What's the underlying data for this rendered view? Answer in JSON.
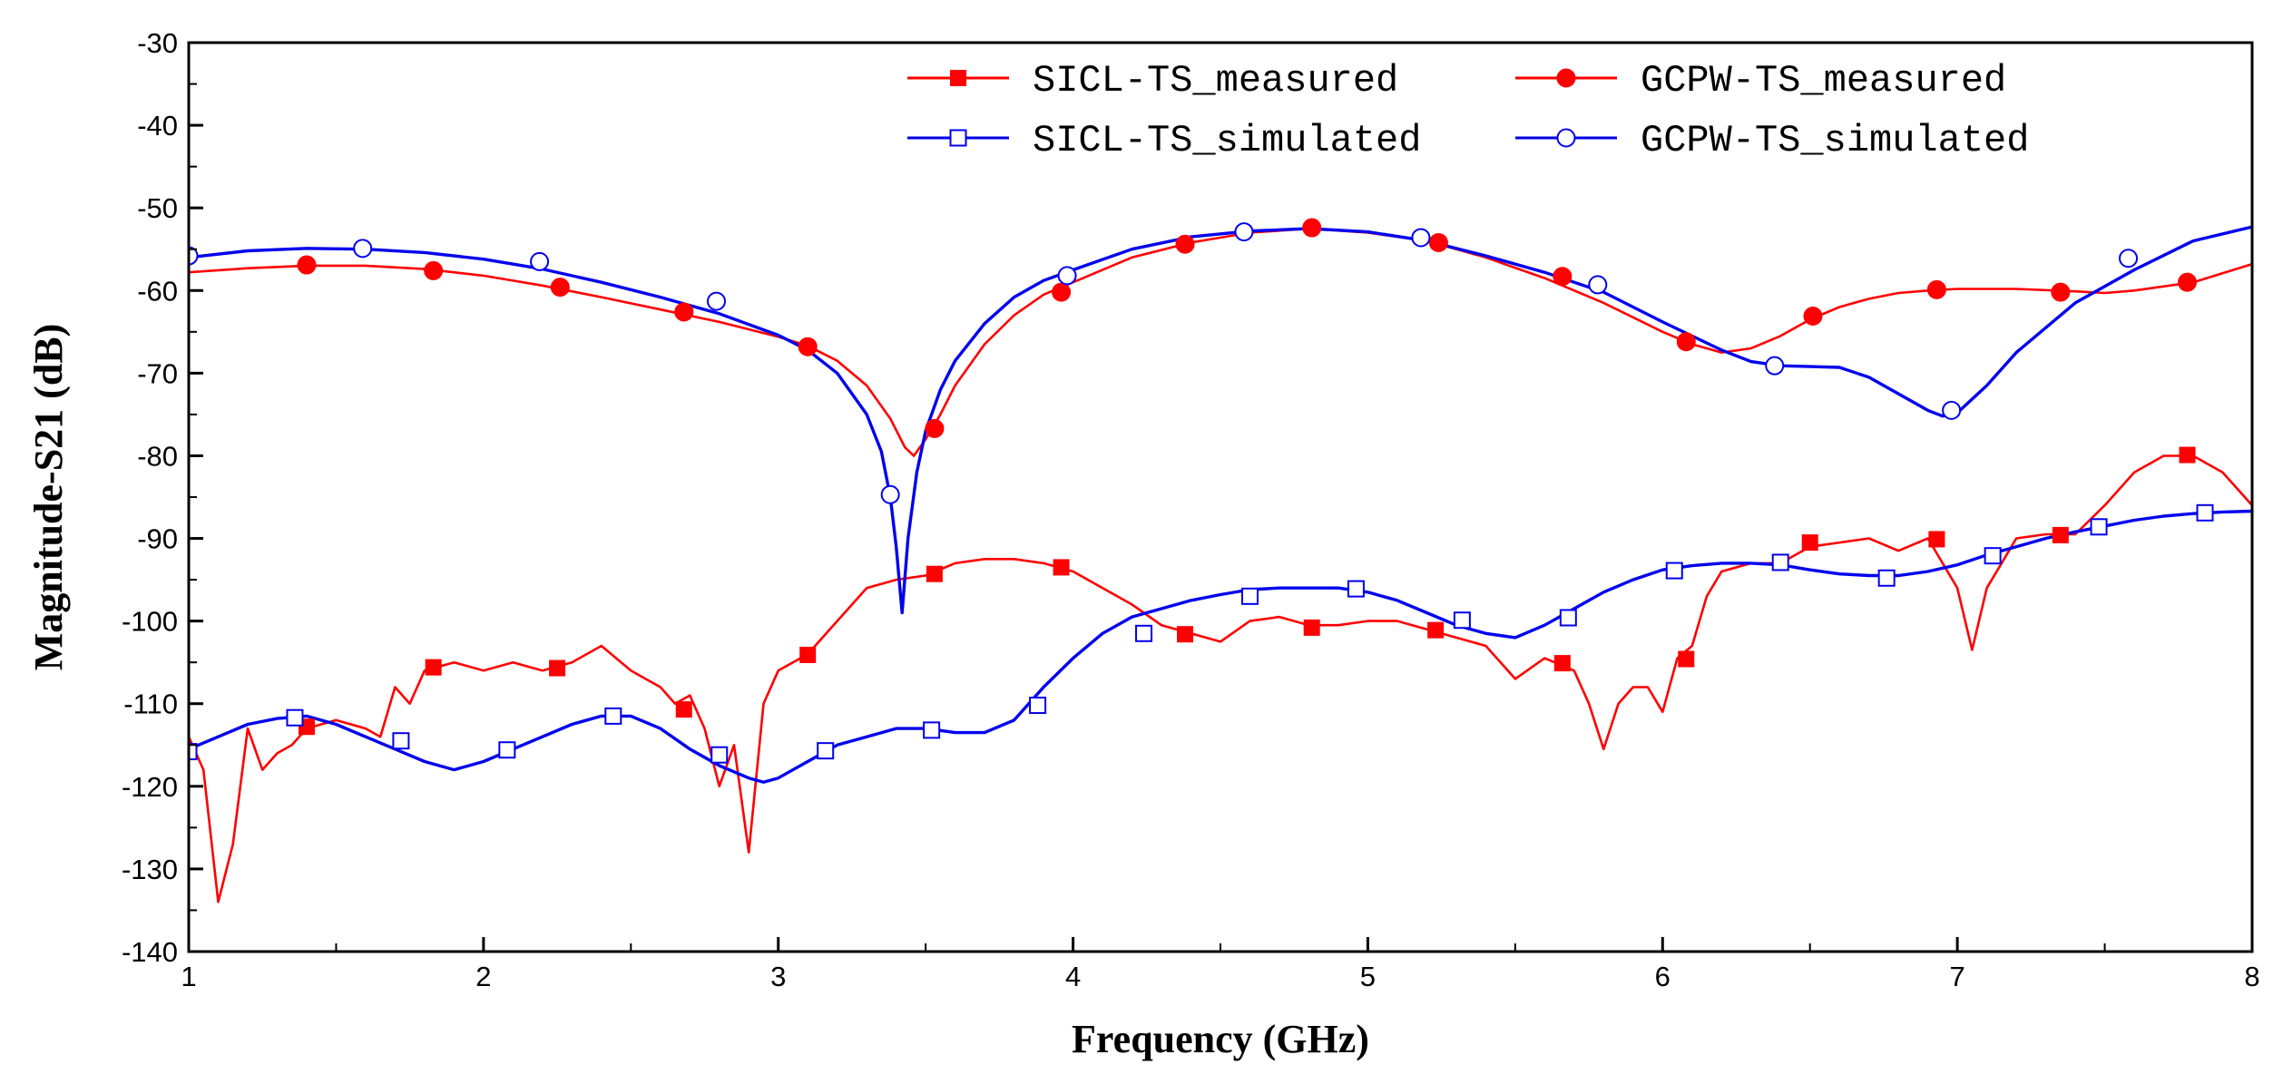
{
  "chart_data": {
    "type": "line",
    "xlabel": "Frequency (GHz)",
    "ylabel": "Magnitude-S21 (dB)",
    "xlim": [
      1,
      8
    ],
    "ylim": [
      -140,
      -30
    ],
    "xticks": [
      1,
      2,
      3,
      4,
      5,
      6,
      7,
      8
    ],
    "yticks": [
      -140,
      -130,
      -120,
      -110,
      -100,
      -90,
      -80,
      -70,
      -60,
      -50,
      -40,
      -30
    ],
    "grid": false,
    "legend_position": "top-right",
    "series": [
      {
        "name": "SICL-TS_measured",
        "color": "#ff0000",
        "marker": "filled-square",
        "x": [
          1.0,
          1.05,
          1.1,
          1.15,
          1.2,
          1.25,
          1.3,
          1.35,
          1.4,
          1.5,
          1.6,
          1.65,
          1.7,
          1.75,
          1.8,
          1.9,
          2.0,
          2.1,
          2.2,
          2.3,
          2.4,
          2.5,
          2.6,
          2.65,
          2.7,
          2.75,
          2.8,
          2.85,
          2.9,
          2.95,
          3.0,
          3.1,
          3.2,
          3.3,
          3.4,
          3.5,
          3.6,
          3.7,
          3.8,
          3.9,
          4.0,
          4.1,
          4.2,
          4.3,
          4.4,
          4.5,
          4.6,
          4.7,
          4.8,
          4.9,
          5.0,
          5.1,
          5.2,
          5.3,
          5.4,
          5.5,
          5.6,
          5.7,
          5.75,
          5.8,
          5.85,
          5.9,
          5.95,
          6.0,
          6.05,
          6.1,
          6.15,
          6.2,
          6.3,
          6.4,
          6.5,
          6.6,
          6.7,
          6.8,
          6.9,
          7.0,
          7.05,
          7.1,
          7.15,
          7.2,
          7.3,
          7.4,
          7.5,
          7.6,
          7.7,
          7.8,
          7.9,
          8.0
        ],
        "values": [
          -114,
          -118,
          -134,
          -127,
          -113,
          -118,
          -116,
          -115,
          -113,
          -112,
          -113,
          -114,
          -108,
          -110,
          -106,
          -105,
          -106,
          -105,
          -106,
          -105,
          -103,
          -106,
          -108,
          -110,
          -109,
          -113,
          -120,
          -115,
          -128,
          -110,
          -106,
          -104,
          -100,
          -96,
          -95,
          -94.5,
          -93,
          -92.5,
          -92.5,
          -93,
          -94,
          -96,
          -98,
          -100.5,
          -101.5,
          -102.5,
          -100,
          -99.5,
          -100.5,
          -100.5,
          -100,
          -100,
          -101,
          -102,
          -103,
          -107,
          -104.5,
          -106,
          -110,
          -115.5,
          -110,
          -108,
          -108,
          -111,
          -104.5,
          -103,
          -97,
          -94,
          -93,
          -93,
          -91,
          -90.5,
          -90,
          -91.5,
          -90,
          -96,
          -103.5,
          -96,
          -93,
          -90,
          -89.5,
          -89.5,
          -86,
          -82,
          -80,
          -80,
          -82,
          -86
        ]
      },
      {
        "name": "SICL-TS_simulated",
        "color": "#0000ee",
        "marker": "hollow-square",
        "x": [
          1.0,
          1.1,
          1.2,
          1.3,
          1.4,
          1.5,
          1.6,
          1.7,
          1.8,
          1.9,
          2.0,
          2.1,
          2.2,
          2.3,
          2.4,
          2.5,
          2.6,
          2.7,
          2.8,
          2.9,
          2.95,
          3.0,
          3.1,
          3.2,
          3.3,
          3.4,
          3.5,
          3.6,
          3.7,
          3.8,
          3.9,
          4.0,
          4.1,
          4.2,
          4.3,
          4.4,
          4.5,
          4.6,
          4.7,
          4.8,
          4.9,
          5.0,
          5.1,
          5.2,
          5.3,
          5.4,
          5.5,
          5.6,
          5.7,
          5.8,
          5.9,
          6.0,
          6.1,
          6.2,
          6.3,
          6.4,
          6.5,
          6.6,
          6.7,
          6.8,
          6.9,
          7.0,
          7.1,
          7.2,
          7.3,
          7.4,
          7.5,
          7.6,
          7.7,
          7.8,
          7.9,
          8.0
        ],
        "values": [
          -115.5,
          -114,
          -112.5,
          -111.8,
          -111.5,
          -112.5,
          -114,
          -115.5,
          -117,
          -118,
          -117,
          -115.5,
          -114,
          -112.5,
          -111.5,
          -111.5,
          -113,
          -115.5,
          -117.5,
          -119,
          -119.5,
          -119,
          -117,
          -115,
          -114,
          -113,
          -113,
          -113.5,
          -113.5,
          -112,
          -108,
          -104.5,
          -101.5,
          -99.5,
          -98.5,
          -97.5,
          -96.8,
          -96.2,
          -96,
          -96,
          -96,
          -96.5,
          -97.5,
          -99,
          -100.5,
          -101.5,
          -102,
          -100.5,
          -98.5,
          -96.5,
          -95,
          -93.8,
          -93.3,
          -93,
          -93,
          -93.2,
          -93.8,
          -94.3,
          -94.5,
          -94.5,
          -94,
          -93.2,
          -92,
          -91,
          -90,
          -89.2,
          -88.5,
          -87.8,
          -87.3,
          -87,
          -86.8,
          -86.7
        ]
      },
      {
        "name": "GCPW-TS_measured",
        "color": "#ff0000",
        "marker": "filled-circle",
        "x": [
          1.0,
          1.2,
          1.4,
          1.6,
          1.8,
          2.0,
          2.2,
          2.4,
          2.6,
          2.8,
          3.0,
          3.1,
          3.2,
          3.3,
          3.38,
          3.43,
          3.46,
          3.5,
          3.55,
          3.6,
          3.7,
          3.8,
          3.9,
          4.0,
          4.2,
          4.4,
          4.6,
          4.8,
          5.0,
          5.2,
          5.4,
          5.6,
          5.8,
          6.0,
          6.1,
          6.2,
          6.3,
          6.4,
          6.5,
          6.6,
          6.7,
          6.8,
          6.9,
          7.0,
          7.2,
          7.4,
          7.5,
          7.6,
          7.8,
          8.0
        ],
        "values": [
          -57.8,
          -57.3,
          -57,
          -57,
          -57.4,
          -58.2,
          -59.4,
          -60.8,
          -62.3,
          -63.8,
          -65.6,
          -66.7,
          -68.5,
          -71.5,
          -75.5,
          -79,
          -80,
          -78,
          -75,
          -71.5,
          -66.5,
          -63,
          -60.5,
          -59,
          -56,
          -54.2,
          -53,
          -52.5,
          -53,
          -54,
          -56,
          -58.5,
          -61.5,
          -65,
          -66.5,
          -67.5,
          -67,
          -65.5,
          -63.5,
          -62,
          -61,
          -60.3,
          -60,
          -59.8,
          -59.8,
          -60.1,
          -60.3,
          -60,
          -59,
          -56.8
        ]
      },
      {
        "name": "GCPW-TS_simulated",
        "color": "#0000ee",
        "marker": "hollow-circle",
        "x": [
          1.0,
          1.2,
          1.4,
          1.6,
          1.8,
          2.0,
          2.2,
          2.4,
          2.6,
          2.8,
          3.0,
          3.1,
          3.2,
          3.3,
          3.35,
          3.38,
          3.4,
          3.42,
          3.44,
          3.47,
          3.5,
          3.55,
          3.6,
          3.7,
          3.8,
          3.9,
          4.0,
          4.2,
          4.4,
          4.6,
          4.8,
          5.0,
          5.2,
          5.4,
          5.6,
          5.8,
          6.0,
          6.2,
          6.3,
          6.4,
          6.5,
          6.6,
          6.7,
          6.8,
          6.9,
          6.95,
          7.0,
          7.1,
          7.2,
          7.4,
          7.6,
          7.8,
          8.0
        ],
        "values": [
          -56,
          -55.2,
          -54.9,
          -55,
          -55.4,
          -56.2,
          -57.4,
          -59,
          -60.8,
          -62.8,
          -65.4,
          -67.2,
          -70,
          -75,
          -79.5,
          -85,
          -91,
          -99,
          -90,
          -82,
          -77,
          -72,
          -68.5,
          -64,
          -60.8,
          -58.8,
          -57.5,
          -55,
          -53.5,
          -52.8,
          -52.5,
          -52.9,
          -54,
          -55.8,
          -57.8,
          -60.2,
          -63.8,
          -67.2,
          -68.6,
          -69.1,
          -69.2,
          -69.3,
          -70.5,
          -72.5,
          -74.5,
          -75.2,
          -74.8,
          -71.5,
          -67.5,
          -61.5,
          -57.5,
          -54,
          -52.3
        ]
      }
    ],
    "marker_positions": {
      "SICL-TS_measured": [
        [
          1.4,
          -112.8
        ],
        [
          1.83,
          -105.6
        ],
        [
          2.25,
          -105.7
        ],
        [
          2.68,
          -110.7
        ],
        [
          3.1,
          -104.1
        ],
        [
          3.53,
          -94.3
        ],
        [
          3.96,
          -93.5
        ],
        [
          4.38,
          -101.6
        ],
        [
          4.81,
          -100.8
        ],
        [
          5.23,
          -101.1
        ],
        [
          5.66,
          -105.1
        ],
        [
          6.08,
          -104.6
        ],
        [
          6.5,
          -90.5
        ],
        [
          6.93,
          -90.1
        ],
        [
          7.35,
          -89.6
        ],
        [
          7.78,
          -79.9
        ]
      ],
      "SICL-TS_simulated": [
        [
          1.0,
          -115.8
        ],
        [
          1.36,
          -111.7
        ],
        [
          1.72,
          -114.5
        ],
        [
          2.08,
          -115.6
        ],
        [
          2.44,
          -111.5
        ],
        [
          2.8,
          -116.2
        ],
        [
          3.16,
          -115.7
        ],
        [
          3.52,
          -113.2
        ],
        [
          3.88,
          -110.2
        ],
        [
          4.24,
          -101.5
        ],
        [
          4.6,
          -97.0
        ],
        [
          4.96,
          -96.1
        ],
        [
          5.32,
          -99.9
        ],
        [
          5.68,
          -99.6
        ],
        [
          6.04,
          -93.9
        ],
        [
          6.4,
          -92.9
        ],
        [
          6.76,
          -94.8
        ],
        [
          7.12,
          -92.1
        ],
        [
          7.48,
          -88.6
        ],
        [
          7.84,
          -86.9
        ]
      ],
      "GCPW-TS_measured": [
        [
          1.4,
          -56.9
        ],
        [
          1.83,
          -57.6
        ],
        [
          2.26,
          -59.6
        ],
        [
          2.68,
          -62.6
        ],
        [
          3.1,
          -66.8
        ],
        [
          3.53,
          -76.7
        ],
        [
          3.96,
          -60.2
        ],
        [
          4.38,
          -54.4
        ],
        [
          4.81,
          -52.4
        ],
        [
          5.24,
          -54.2
        ],
        [
          5.66,
          -58.3
        ],
        [
          6.08,
          -66.2
        ],
        [
          6.51,
          -63.1
        ],
        [
          6.93,
          -59.9
        ],
        [
          7.35,
          -60.2
        ],
        [
          7.78,
          -59.0
        ]
      ],
      "GCPW-TS_simulated": [
        [
          1.0,
          -55.8
        ],
        [
          1.59,
          -54.9
        ],
        [
          2.19,
          -56.5
        ],
        [
          2.79,
          -61.3
        ],
        [
          3.38,
          -84.7
        ],
        [
          3.98,
          -58.2
        ],
        [
          4.58,
          -52.9
        ],
        [
          5.18,
          -53.6
        ],
        [
          5.78,
          -59.3
        ],
        [
          6.38,
          -69.1
        ],
        [
          6.98,
          -74.5
        ],
        [
          7.58,
          -56.1
        ]
      ]
    }
  }
}
